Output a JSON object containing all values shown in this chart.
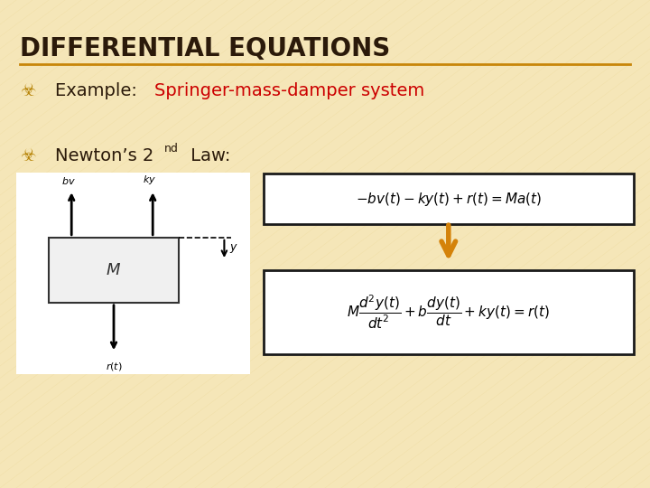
{
  "bg_color": "#f5e6b8",
  "title": "DIFFERENTIAL EQUATIONS",
  "title_color": "#2b1a0a",
  "title_underline_color": "#c8860a",
  "bullet_color": "#b8860b",
  "bullet_symbol": "☣",
  "example_label": "Example: ",
  "example_label_color": "#2b1a0a",
  "example_value": "Springer-mass-damper system",
  "example_value_color": "#cc0000",
  "newton_label": "Newton’s 2",
  "newton_sup": "nd",
  "newton_rest": " Law:",
  "newton_color": "#2b1a0a",
  "eq_text_color": "#000000",
  "eq_box_color": "#1a1a1a",
  "arrow_color": "#d4820a",
  "diagram_bg": "#f8f8f8"
}
